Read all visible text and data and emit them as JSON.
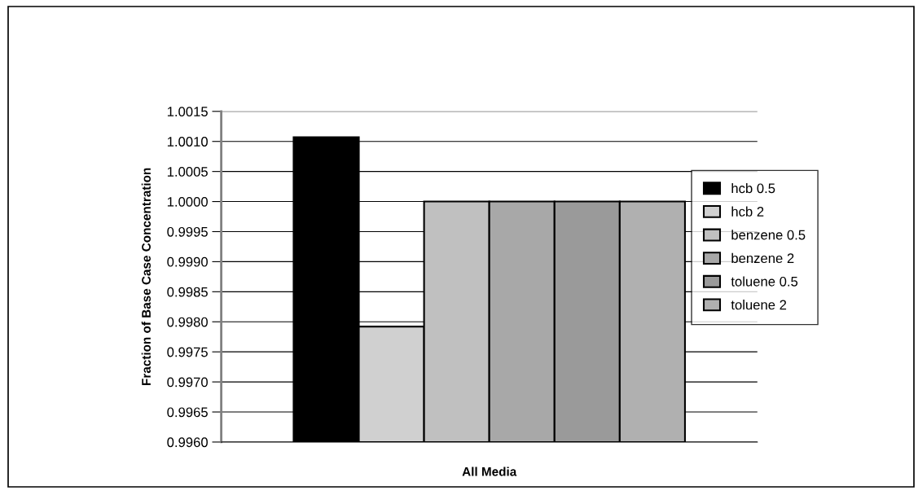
{
  "chart_data": {
    "type": "bar",
    "ylabel": "Fraction of Base Case Concentration",
    "categories": [
      "All Media"
    ],
    "series": [
      {
        "name": "hcb 0.5",
        "color": "#000000",
        "values": [
          1.00107
        ]
      },
      {
        "name": "hcb 2",
        "color": "#d0d0d0",
        "values": [
          0.99792
        ]
      },
      {
        "name": "benzene 0.5",
        "color": "#c0c0c0",
        "values": [
          1.0
        ]
      },
      {
        "name": "benzene 2",
        "color": "#a8a8a8",
        "values": [
          1.0
        ]
      },
      {
        "name": "toluene 0.5",
        "color": "#9a9a9a",
        "values": [
          1.0
        ]
      },
      {
        "name": "toluene 2",
        "color": "#b0b0b0",
        "values": [
          1.0
        ]
      }
    ],
    "ylim": [
      0.996,
      1.0015
    ],
    "yticks": [
      {
        "value": 0.996,
        "label": "0.9960"
      },
      {
        "value": 0.9965,
        "label": "0.9965"
      },
      {
        "value": 0.997,
        "label": "0.9970"
      },
      {
        "value": 0.9975,
        "label": "0.9975"
      },
      {
        "value": 0.998,
        "label": "0.9980"
      },
      {
        "value": 0.9985,
        "label": "0.9985"
      },
      {
        "value": 0.999,
        "label": "0.9990"
      },
      {
        "value": 0.9995,
        "label": "0.9995"
      },
      {
        "value": 1.0,
        "label": "1.0000"
      },
      {
        "value": 1.0005,
        "label": "1.0005"
      },
      {
        "value": 1.001,
        "label": "1.0010"
      },
      {
        "value": 1.0015,
        "label": "1.0015"
      }
    ],
    "grid": "y",
    "legend": "right"
  }
}
